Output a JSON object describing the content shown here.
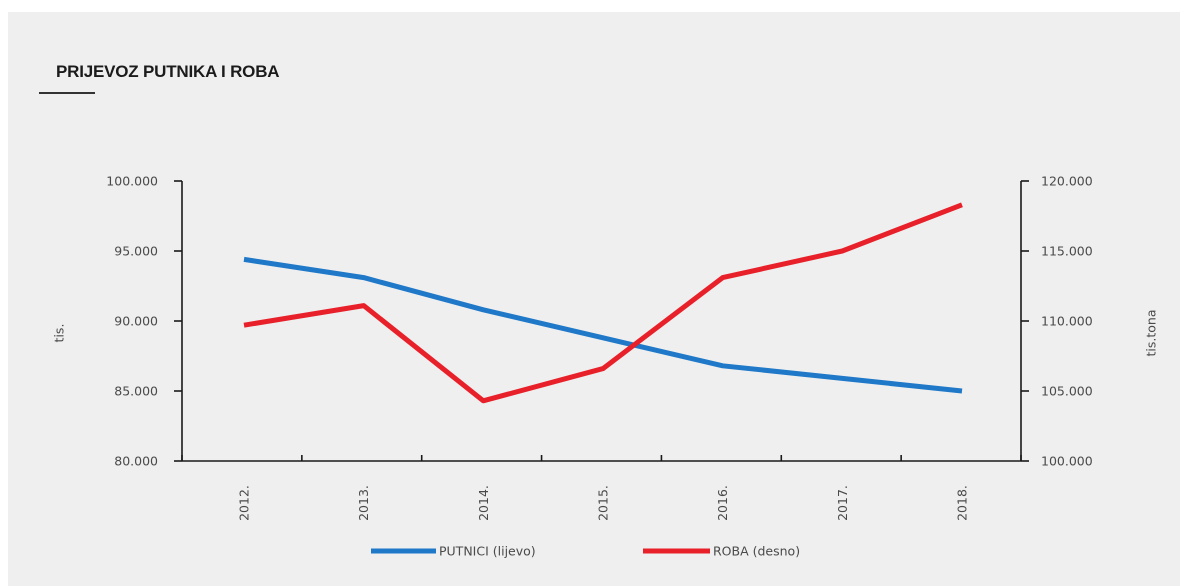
{
  "chart_data": {
    "type": "line",
    "title": "PRIJEVOZ PUTNIKA I ROBA",
    "categories": [
      "2012.",
      "2013.",
      "2014.",
      "2015.",
      "2016.",
      "2017.",
      "2018."
    ],
    "ylabel_left": "tis.",
    "ylabel_right": "tis.tona",
    "ylim_left": [
      80000,
      100000
    ],
    "ylim_right": [
      100000,
      120000
    ],
    "yticks_left": [
      "80.000",
      "85.000",
      "90.000",
      "95.000",
      "100.000"
    ],
    "yticks_right": [
      "100.000",
      "105.000",
      "110.000",
      "115.000",
      "120.000"
    ],
    "grid": false,
    "legend_position": "bottom",
    "series": [
      {
        "name": "PUTNICI (lijevo)",
        "axis": "left",
        "color": "#1f78c8",
        "values": [
          94400,
          93100,
          90800,
          88800,
          86800,
          85900,
          85000
        ]
      },
      {
        "name": "ROBA (desno)",
        "axis": "right",
        "color": "#e8202a",
        "values": [
          109700,
          111100,
          104300,
          106600,
          113100,
          115000,
          118300
        ]
      }
    ]
  }
}
